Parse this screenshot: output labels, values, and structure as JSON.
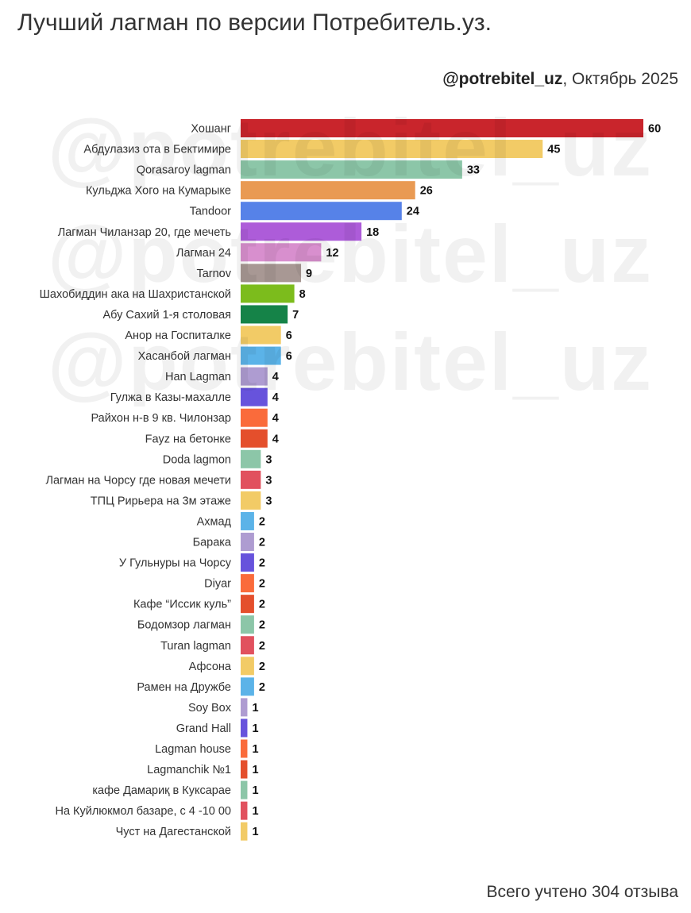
{
  "title": "Лучший лагман по версии Потребитель.уз.",
  "byline": {
    "handle": "@potrebitel_uz",
    "separator": ",",
    "date": "Октябрь 2025"
  },
  "footer": "Всего учтено 304 отзыва",
  "watermark": "@potrebitel_uz",
  "chart_data": {
    "type": "bar",
    "orientation": "horizontal",
    "title": "Лучший лагман по версии Потребитель.уз.",
    "xlabel": "",
    "ylabel": "",
    "xlim": [
      0,
      60
    ],
    "grid": false,
    "categories": [
      "Хошанг",
      "Абдулазиз ота в Бектимире",
      "Qorasaroy lagman",
      "Кульджа Хого на Кумарыке",
      "Tandoor",
      "Лагман Чиланзар 20, где мечеть",
      "Лагман 24",
      "Tarnov",
      "Шахобиддин ака на Шахристанской",
      "Абу Сахий 1-я столовая",
      "Анор на Госпиталке",
      "Хасанбой лагман",
      "Han Lagman",
      "Гулжа в Казы-махалле",
      "Райхон н-в 9 кв. Чилонзар",
      "Fayz на бетонке",
      "Doda lagmon",
      "Лагман на Чорсу где новая мечети",
      "ТПЦ Рирьера на 3м этаже",
      "Ахмад",
      "Барака",
      "У Гульнуры на Чорсу",
      "Diyar",
      "Кафе “Иссик куль”",
      "Бодомзор лагман",
      "Turan lagman",
      "Афсона",
      "Рамен на Дружбе",
      "Soy Box",
      "Grand Hall",
      "Lagman house",
      "Lagmanchik №1",
      "кафе Дамариқ в Куксарае",
      "На Куйлюкмол базаре, с 4 -10 00",
      "Чуст на Дагестанской"
    ],
    "values": [
      60,
      45,
      33,
      26,
      24,
      18,
      12,
      9,
      8,
      7,
      6,
      6,
      4,
      4,
      4,
      4,
      3,
      3,
      3,
      2,
      2,
      2,
      2,
      2,
      2,
      2,
      2,
      2,
      1,
      1,
      1,
      1,
      1,
      1,
      1
    ],
    "colors": [
      "#c9252c",
      "#f2cb66",
      "#8cc6a8",
      "#e99a53",
      "#5682e8",
      "#ad5cd9",
      "#d88fce",
      "#a89894",
      "#7cbc1c",
      "#158348",
      "#f2cb66",
      "#5bb3e8",
      "#ae9cd1",
      "#6753dc",
      "#fa6b3b",
      "#e44f2c",
      "#8cc6a8",
      "#e1515e",
      "#f2cb66",
      "#5bb3e8",
      "#ae9cd1",
      "#6753dc",
      "#fa6b3b",
      "#e44f2c",
      "#8cc6a8",
      "#e1515e",
      "#f2cb66",
      "#5bb3e8",
      "#ae9cd1",
      "#6753dc",
      "#fa6b3b",
      "#e44f2c",
      "#8cc6a8",
      "#e1515e",
      "#f2cb66"
    ]
  }
}
